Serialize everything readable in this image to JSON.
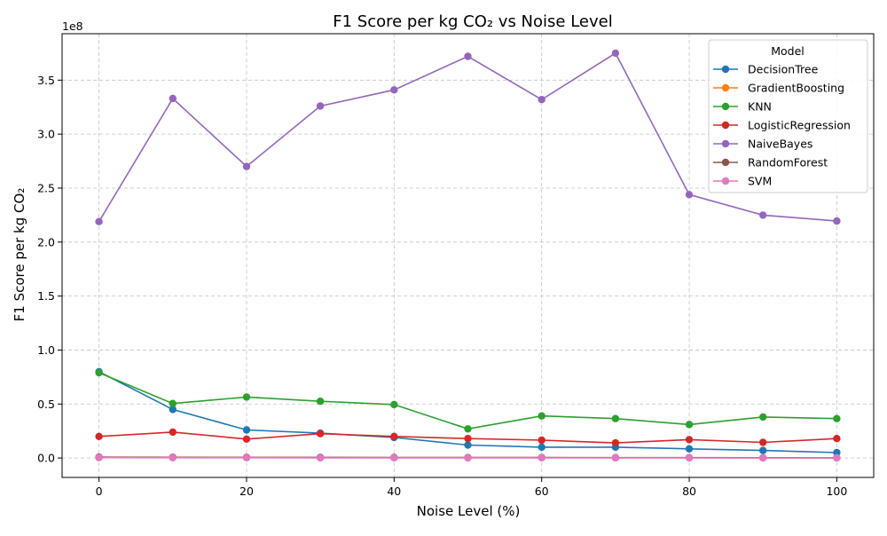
{
  "chart_data": {
    "type": "line",
    "title": "F1 Score per kg CO₂ vs Noise Level",
    "xlabel": "Noise Level (%)",
    "ylabel": "F1 Score per kg CO₂",
    "y_offset_label": "1e8",
    "xlim": [
      -5,
      105
    ],
    "ylim": [
      -18000000,
      393000000
    ],
    "x_ticks": [
      0,
      20,
      40,
      60,
      80,
      100
    ],
    "x_tick_labels": [
      "0",
      "20",
      "40",
      "60",
      "80",
      "100"
    ],
    "y_ticks": [
      0,
      50000000,
      100000000,
      150000000,
      200000000,
      250000000,
      300000000,
      350000000
    ],
    "y_tick_labels": [
      "0.0",
      "0.5",
      "1.0",
      "1.5",
      "2.0",
      "2.5",
      "3.0",
      "3.5"
    ],
    "grid": true,
    "legend_title": "Model",
    "legend_position": "top-right",
    "x": [
      0,
      10,
      20,
      30,
      40,
      50,
      60,
      70,
      80,
      90,
      100
    ],
    "series": [
      {
        "name": "DecisionTree",
        "color": "#1f77b4",
        "values": [
          80000000,
          45000000,
          26000000,
          23000000,
          19000000,
          12000000,
          10000000,
          10000000,
          8500000,
          7000000,
          5000000
        ]
      },
      {
        "name": "GradientBoosting",
        "color": "#ff7f0e",
        "values": [
          500000,
          500000,
          400000,
          400000,
          350000,
          300000,
          300000,
          250000,
          250000,
          200000,
          200000
        ]
      },
      {
        "name": "KNN",
        "color": "#2ca02c",
        "values": [
          79000000,
          50500000,
          56500000,
          52500000,
          49500000,
          27000000,
          39000000,
          36500000,
          31000000,
          38000000,
          36500000
        ]
      },
      {
        "name": "LogisticRegression",
        "color": "#d62728",
        "values": [
          20000000,
          24000000,
          17500000,
          22500000,
          20000000,
          18000000,
          16500000,
          14000000,
          17000000,
          14500000,
          18000000
        ]
      },
      {
        "name": "NaiveBayes",
        "color": "#9467bd",
        "values": [
          219000000,
          333000000,
          270000000,
          326000000,
          341000000,
          372000000,
          332000000,
          375000000,
          244000000,
          225000000,
          219500000
        ]
      },
      {
        "name": "RandomForest",
        "color": "#8c564b",
        "values": [
          800000,
          700000,
          600000,
          550000,
          500000,
          450000,
          400000,
          350000,
          300000,
          250000,
          200000
        ]
      },
      {
        "name": "SVM",
        "color": "#e377c2",
        "values": [
          300000,
          250000,
          250000,
          200000,
          200000,
          150000,
          150000,
          150000,
          100000,
          100000,
          100000
        ]
      }
    ]
  }
}
